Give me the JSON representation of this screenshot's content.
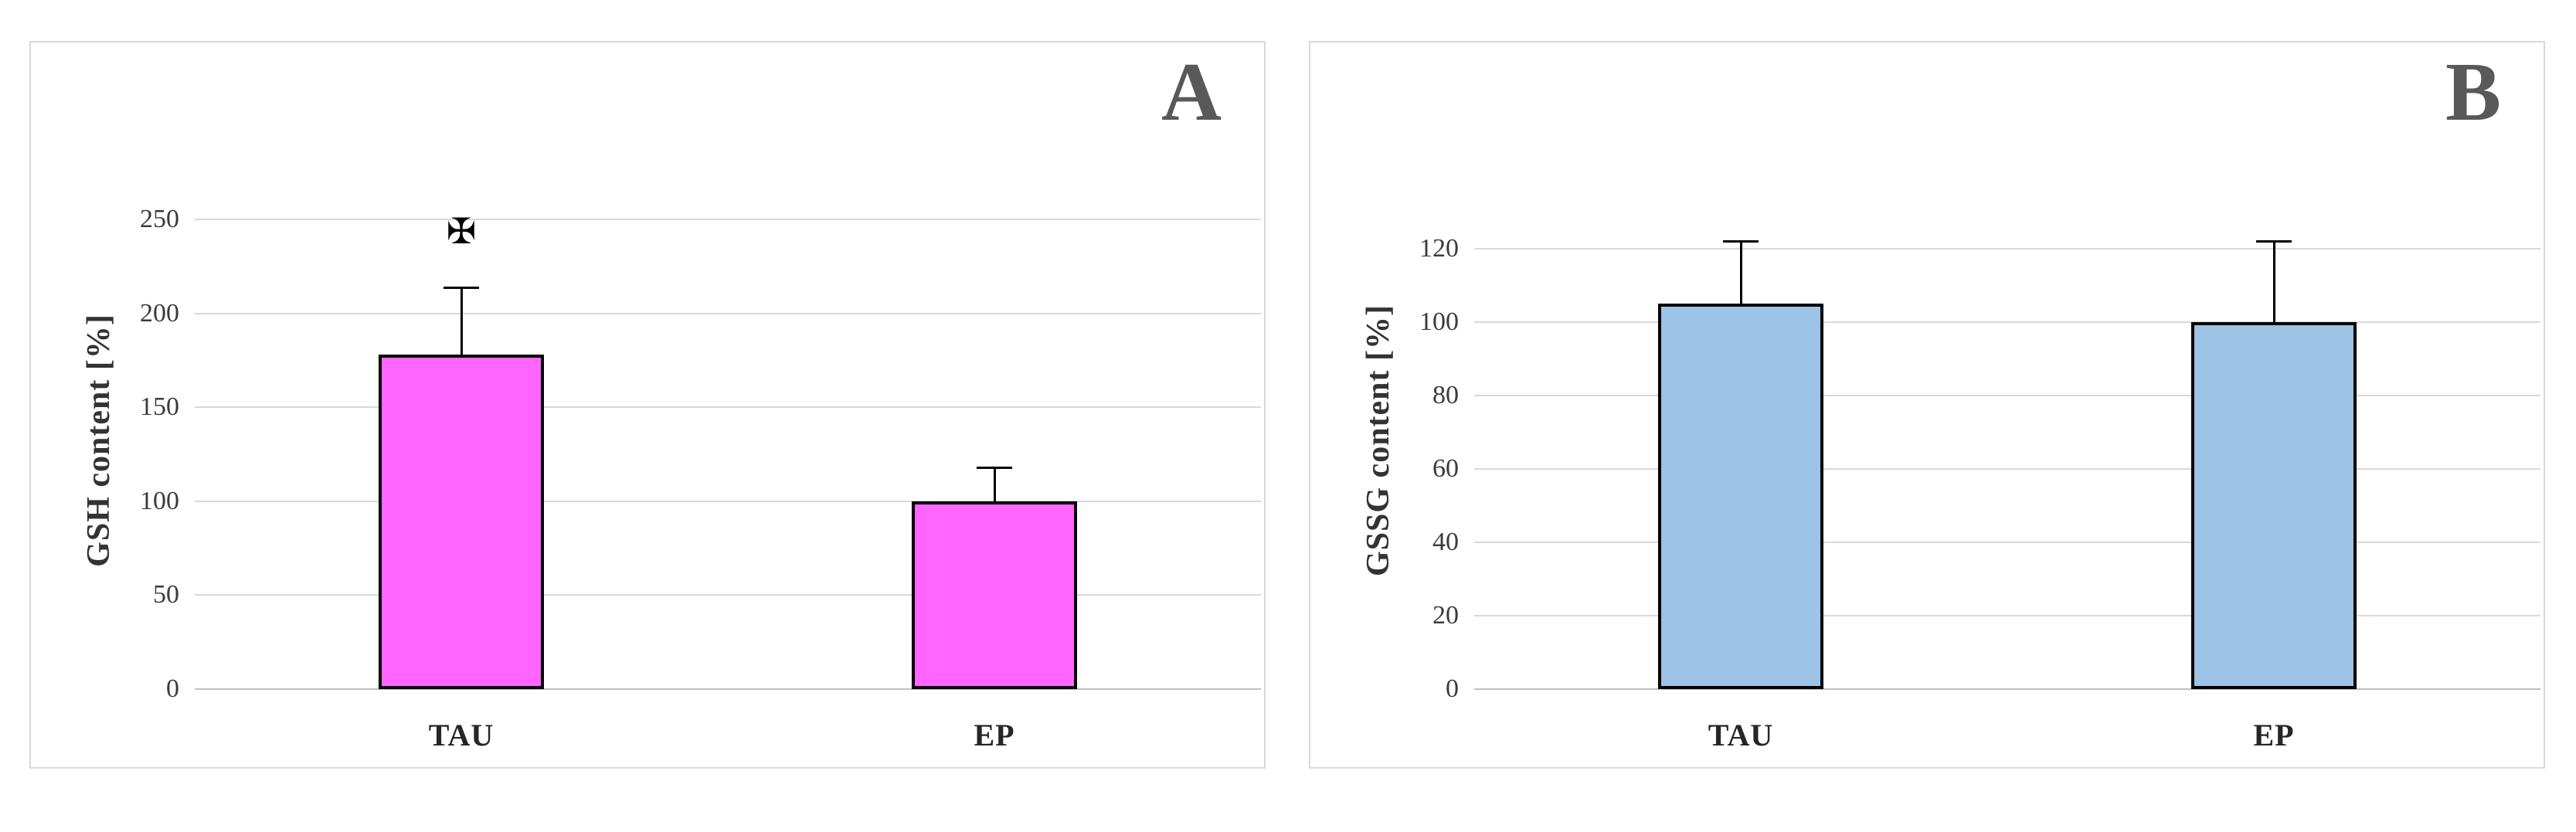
{
  "figure": {
    "background": "#ffffff",
    "panel_border_color": "#d9d9d9",
    "panel_letter_color": "#595959",
    "gridline_color": "#d9d9d9",
    "axis_line_color": "#c0c0c0"
  },
  "chart_data": [
    {
      "type": "bar",
      "panel_label": "A",
      "title": "",
      "xlabel": "",
      "ylabel": "GSH content [%]",
      "categories": [
        "TAU",
        "EP"
      ],
      "values": [
        178,
        100
      ],
      "error_top": [
        214,
        118
      ],
      "yticks": [
        0,
        50,
        100,
        150,
        200,
        250
      ],
      "ylim": [
        0,
        250
      ],
      "ymax_render": 262,
      "bar_color": "#FF66FF",
      "bar_border_color": "#000000",
      "grid": true,
      "legend": "none",
      "annotations": [
        {
          "category_index": 0,
          "text": "✠",
          "y_value": 234
        }
      ]
    },
    {
      "type": "bar",
      "panel_label": "B",
      "title": "",
      "xlabel": "",
      "ylabel": "GSSG content [%]",
      "categories": [
        "TAU",
        "EP"
      ],
      "values": [
        105,
        100
      ],
      "error_top": [
        122,
        122
      ],
      "yticks": [
        0,
        20,
        40,
        60,
        80,
        100,
        120
      ],
      "ylim": [
        0,
        120
      ],
      "ymax_render": 134,
      "bar_color": "#9DC3E6",
      "bar_border_color": "#000000",
      "grid": true,
      "legend": "none",
      "annotations": []
    }
  ]
}
